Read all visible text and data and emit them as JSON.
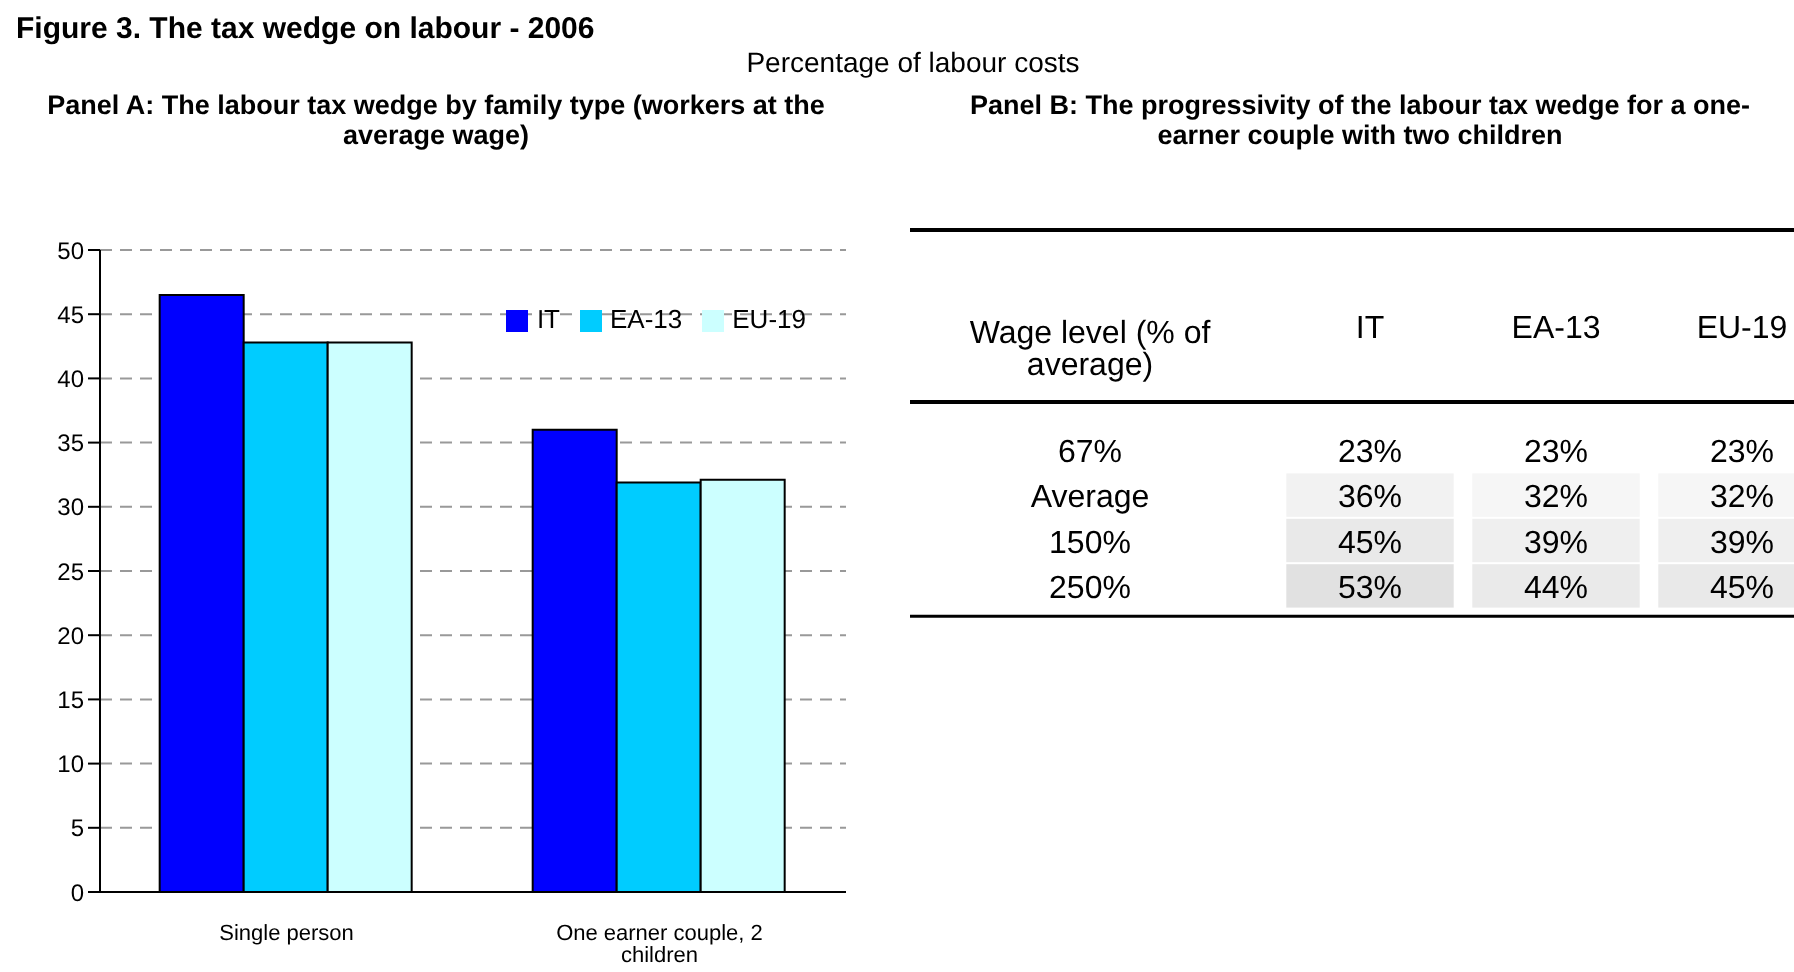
{
  "chart_data": [
    {
      "type": "bar",
      "title": "Panel A: The labour tax wedge by family type (workers at the average wage)",
      "annotations": [
        "Figure 3. The tax wedge on labour - 2006"
      ],
      "subtitle": "Percentage of labour costs",
      "categories": [
        "Single person",
        "One earner couple, 2 children"
      ],
      "series": [
        {
          "name": "IT",
          "color": "#0000ff",
          "values": [
            46.5,
            36.0
          ]
        },
        {
          "name": "EA-13",
          "color": "#00ccff",
          "values": [
            42.8,
            31.9
          ]
        },
        {
          "name": "EU-19",
          "color": "#ccffff",
          "values": [
            42.8,
            32.1
          ]
        }
      ],
      "ylim": [
        0,
        50
      ],
      "yticks": [
        0,
        5,
        10,
        15,
        20,
        25,
        30,
        35,
        40,
        45,
        50
      ],
      "grid": "y",
      "legend": "top right"
    },
    {
      "type": "heatmap",
      "title": "Panel B: The progressivity of the labour tax wedge for a one-earner couple with two children",
      "ylabel": "Wage level (% of average)",
      "categories": [
        "IT",
        "EA-13",
        "EU-19"
      ],
      "y_categories": [
        "67%",
        "Average",
        "150%",
        "250%"
      ],
      "cells": [
        [
          23,
          23,
          23
        ],
        [
          36,
          32,
          32
        ],
        [
          45,
          39,
          39
        ],
        [
          53,
          44,
          45
        ]
      ],
      "cell_labels": [
        [
          "23%",
          "23%",
          "23%"
        ],
        [
          "36%",
          "32%",
          "32%"
        ],
        [
          "45%",
          "39%",
          "39%"
        ],
        [
          "53%",
          "44%",
          "45%"
        ]
      ]
    }
  ]
}
